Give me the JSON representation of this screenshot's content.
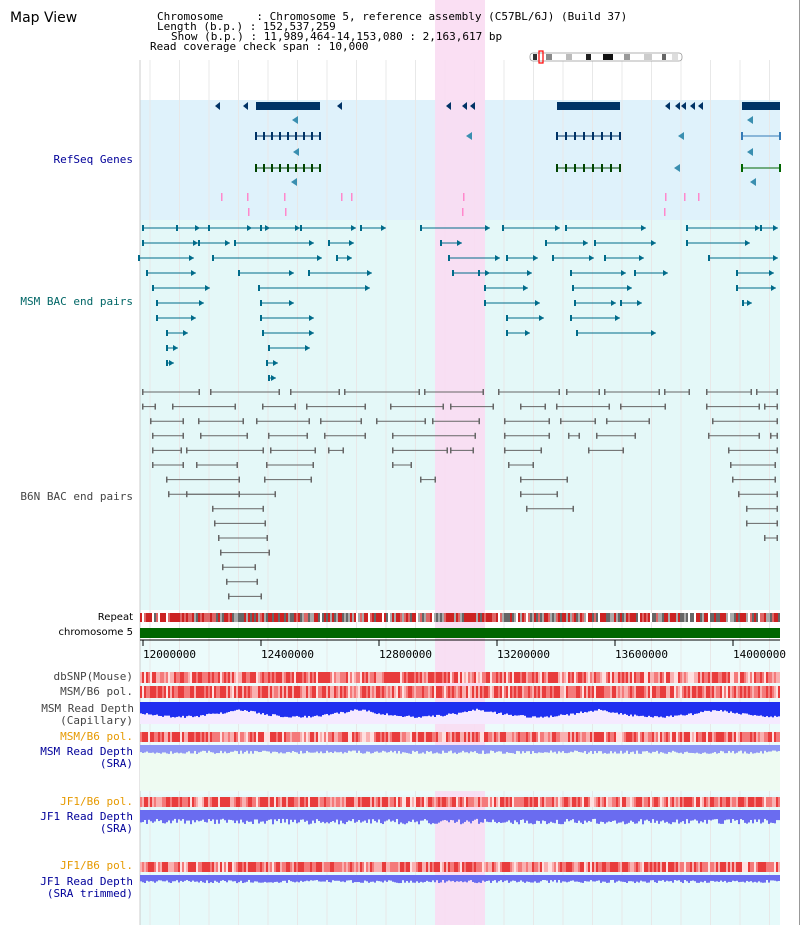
{
  "window": {
    "title": "Map View"
  },
  "header": {
    "lines": [
      "Chromosome     : Chromosome 5, reference assembly (C57BL/6J) (Build 37)",
      "Length (b.p.) : 152,537,259",
      "Show (b.p.) : 11,989,464-14,153,080 : 2,163,617 bp",
      "Read coverage check span : 10,000"
    ]
  },
  "tracks": {
    "refseq": "RefSeq Genes",
    "msm_bac": "MSM BAC end pairs",
    "b6n_bac": "B6N BAC end pairs",
    "repeat": "Repeat",
    "chromosome": "chromosome 5",
    "dbsnp": "dbSNP(Mouse)",
    "msm_b6_pol": "MSM/B6 pol.",
    "msm_depth_cap_1": "MSM Read Depth",
    "msm_depth_cap_2": "(Capillary)",
    "msm_b6_pol2": "MSM/B6 pol.",
    "msm_depth_sra_1": "MSM Read Depth",
    "msm_depth_sra_2": "(SRA)",
    "jf1_b6_pol": "JF1/B6 pol.",
    "jf1_depth_sra_1": "JF1 Read Depth",
    "jf1_depth_sra_2": "(SRA)",
    "jf1_b6_pol2": "JF1/B6 pol.",
    "jf1_depth_trim_1": "JF1 Read Depth",
    "jf1_depth_trim_2": "(SRA trimmed)"
  },
  "axis": {
    "ticks": [
      "12000000",
      "12400000",
      "12800000",
      "13200000",
      "13600000",
      "14000000"
    ]
  },
  "colors": {
    "refseq_bg": "#dff2fb",
    "bac_bg": "#e4f8f8",
    "highlight": "#f9dcf2",
    "refseq": "#003366",
    "msm": "#006b8a",
    "b6n": "#666666",
    "chromosome": "#006600",
    "label_blue": "#000099",
    "label_teal": "#006666",
    "label_orange": "#e69900",
    "label_gray": "#444444"
  }
}
